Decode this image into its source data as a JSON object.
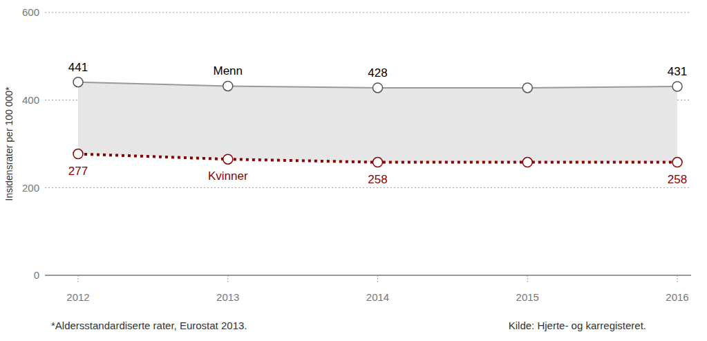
{
  "chart_data": {
    "type": "line",
    "categories": [
      "2012",
      "2013",
      "2014",
      "2015",
      "2016"
    ],
    "series": [
      {
        "name": "Menn",
        "color": "#999999",
        "marker": "circle",
        "line_style": "solid",
        "values": [
          441,
          432,
          428,
          428,
          431
        ],
        "value_labels": [
          "441",
          null,
          "428",
          null,
          "431"
        ]
      },
      {
        "name": "Kvinner",
        "color": "#8b0000",
        "marker": "circle",
        "line_style": "dotted",
        "values": [
          277,
          265,
          258,
          258,
          258
        ],
        "value_labels": [
          "277",
          null,
          "258",
          null,
          "258"
        ]
      }
    ],
    "ylabel": "Insidensrater per 100 000*",
    "ylim": [
      0,
      600
    ],
    "yticks": [
      0,
      200,
      400,
      600
    ],
    "grid": true,
    "data_labels": true,
    "footnote": "*Aldersstandardiserte rater, Eurostat 2013.",
    "source": "Kilde: Hjerte- og karregisteret."
  }
}
